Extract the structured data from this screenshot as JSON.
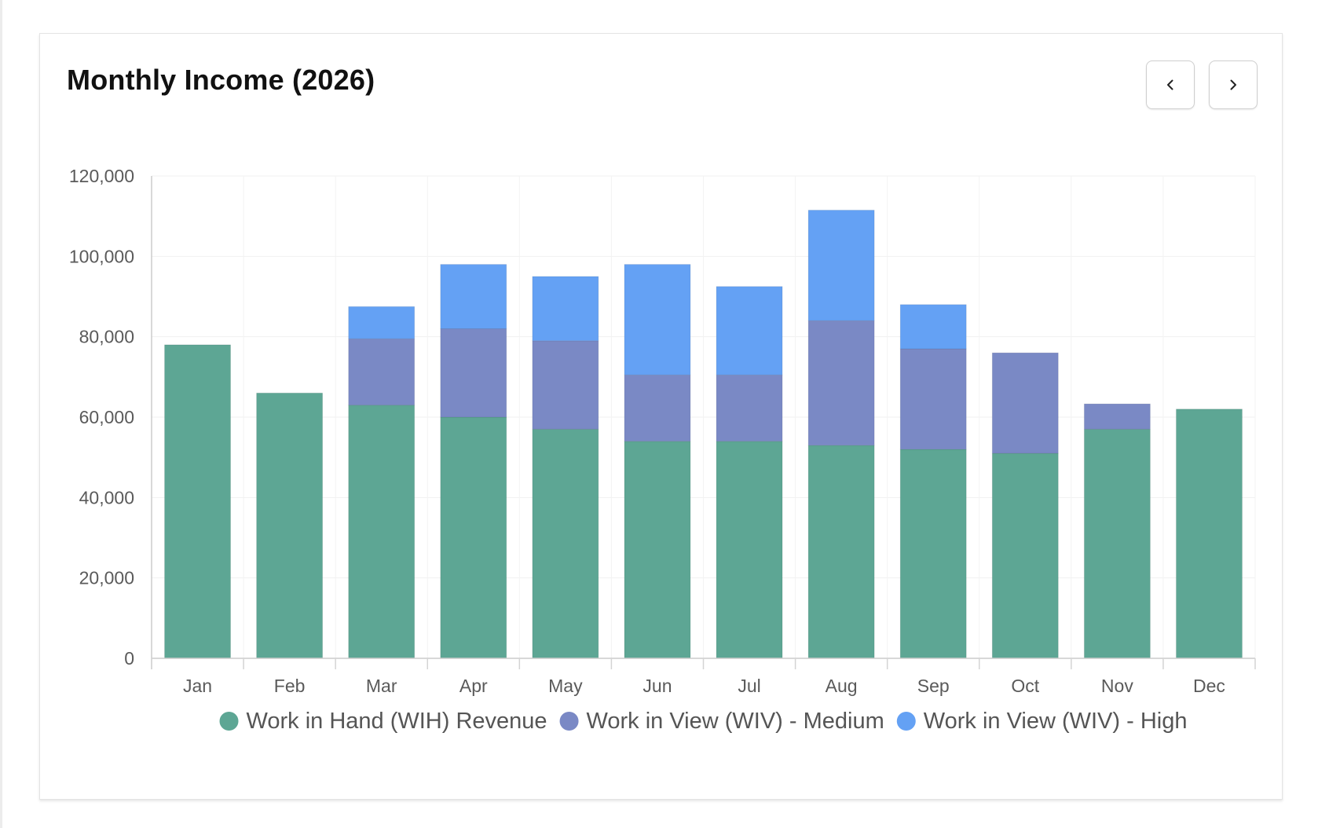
{
  "card": {
    "title": "Monthly Income (2026)"
  },
  "nav": {
    "prev_icon": "chevron-left-icon",
    "next_icon": "chevron-right-icon"
  },
  "chart_data": {
    "type": "bar",
    "stacked": true,
    "title": "",
    "xlabel": "",
    "ylabel": "",
    "categories": [
      "Jan",
      "Feb",
      "Mar",
      "Apr",
      "May",
      "Jun",
      "Jul",
      "Aug",
      "Sep",
      "Oct",
      "Nov",
      "Dec"
    ],
    "ylim": [
      0,
      120000
    ],
    "yticks": [
      0,
      20000,
      40000,
      60000,
      80000,
      100000,
      120000
    ],
    "ytick_labels": [
      "0",
      "20,000",
      "40,000",
      "60,000",
      "80,000",
      "100,000",
      "120,000"
    ],
    "grid": true,
    "legend_position": "bottom",
    "series": [
      {
        "name": "Work in Hand (WIH) Revenue",
        "color": "#5da694",
        "values": [
          78000,
          66000,
          63000,
          60000,
          57000,
          54000,
          54000,
          53000,
          52000,
          51000,
          57000,
          62000
        ]
      },
      {
        "name": "Work in View (WIV) - Medium",
        "color": "#7a89c5",
        "values": [
          0,
          0,
          16500,
          22000,
          22000,
          16500,
          16500,
          31000,
          25000,
          25000,
          6300,
          0
        ]
      },
      {
        "name": "Work in View (WIV) - High",
        "color": "#64a1f4",
        "values": [
          0,
          0,
          8000,
          16000,
          16000,
          27500,
          22000,
          27500,
          11000,
          0,
          0,
          0
        ]
      }
    ]
  }
}
